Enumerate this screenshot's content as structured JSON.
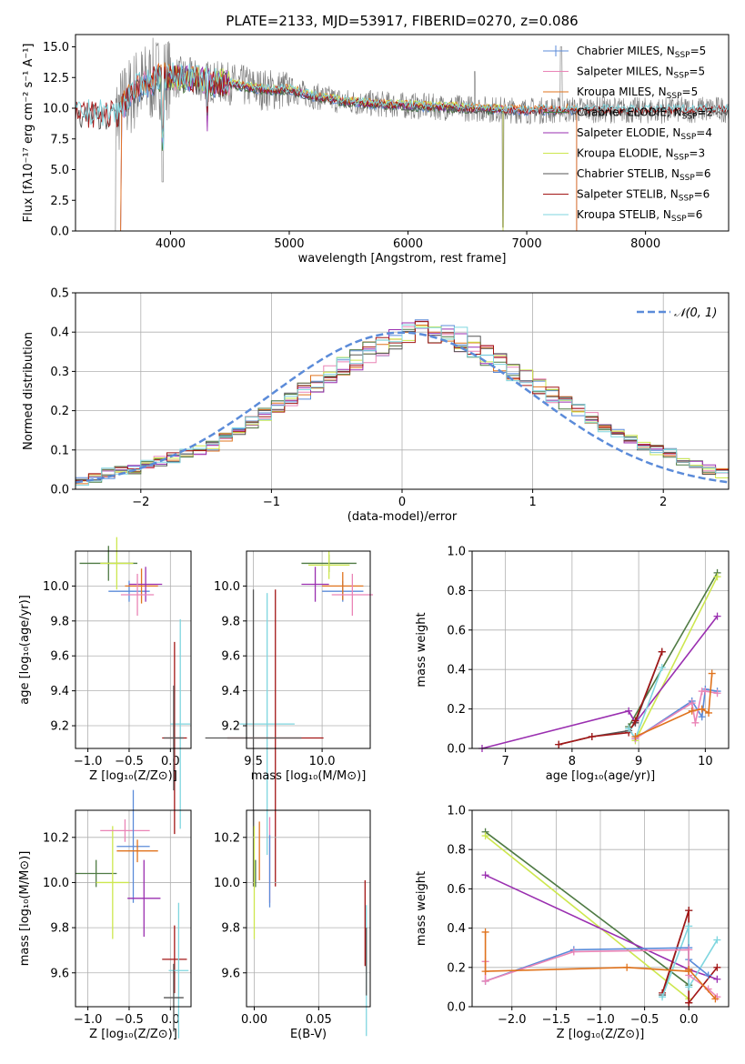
{
  "figure_title": "PLATE=2133, MJD=53917, FIBERID=0270, z=0.086",
  "colors": {
    "Chabrier MILES": "#5b8bd9",
    "Salpeter MILES": "#ea84b6",
    "Kroupa MILES": "#e0731d",
    "Chabrier ELODIE": "#4e7a43",
    "Salpeter ELODIE": "#9a2fb0",
    "Kroupa ELODIE": "#cde74e",
    "Chabrier STELIB": "#555555",
    "Salpeter STELIB": "#a31616",
    "Kroupa STELIB": "#7fd6df"
  },
  "chart_data": [
    {
      "id": "spectrum",
      "type": "line",
      "title": "PLATE=2133, MJD=53917, FIBERID=0270, z=0.086",
      "xlabel": "wavelength [Angstrom, rest frame]",
      "ylabel": "Flux [fλ10⁻¹⁷ erg cm⁻² s⁻¹ A⁻¹]",
      "xlim": [
        3200,
        8700
      ],
      "ylim": [
        0,
        16
      ],
      "xticks": [
        "4000",
        "5000",
        "6000",
        "7000",
        "8000"
      ],
      "yticks": [
        "0.0",
        "2.5",
        "5.0",
        "7.5",
        "10.0",
        "12.5",
        "15.0"
      ],
      "legend": [
        {
          "name": "Chabrier MILES",
          "nssp": "5"
        },
        {
          "name": "Salpeter MILES",
          "nssp": "5"
        },
        {
          "name": "Kroupa MILES",
          "nssp": "5"
        },
        {
          "name": "Chabrier ELODIE",
          "nssp": "2"
        },
        {
          "name": "Salpeter ELODIE",
          "nssp": "4"
        },
        {
          "name": "Kroupa ELODIE",
          "nssp": "3"
        },
        {
          "name": "Chabrier STELIB",
          "nssp": "6"
        },
        {
          "name": "Salpeter STELIB",
          "nssp": "6"
        },
        {
          "name": "Kroupa STELIB",
          "nssp": "6"
        }
      ],
      "legend_placement": "upper-right",
      "grid": false,
      "data_continuum_x": [
        3550,
        3700,
        3900,
        4100,
        4300,
        4500,
        4800,
        5000,
        5200,
        5500,
        6000,
        6500,
        7000,
        7500,
        8000,
        8500
      ],
      "data_continuum_y": [
        9.5,
        11.5,
        12.5,
        12.5,
        12.2,
        12.0,
        11.5,
        11.5,
        11.0,
        10.5,
        10.2,
        10.0,
        9.8,
        9.9,
        9.8,
        9.9
      ],
      "model_ranges": {
        "MILES": [
          3550,
          7420
        ],
        "ELODIE": [
          3900,
          6800
        ],
        "STELIB": [
          3200,
          8700
        ]
      }
    },
    {
      "id": "residual-histogram",
      "type": "histogram",
      "xlabel": "(data-model)/error",
      "ylabel": "Normed distribution",
      "xlim": [
        -2.5,
        2.5
      ],
      "ylim": [
        0,
        0.5
      ],
      "xticks": [
        "−2",
        "−1",
        "0",
        "1",
        "2"
      ],
      "yticks": [
        "0.0",
        "0.1",
        "0.2",
        "0.3",
        "0.4",
        "0.5"
      ],
      "grid": true,
      "bin_edges_start": -2.5,
      "bin_width": 0.1,
      "reference_curve": {
        "name": "𝒩(0, 1)",
        "mean": 0,
        "sigma": 1,
        "style": "dashed"
      },
      "legend_placement": "upper-right",
      "base_values": [
        0.02,
        0.03,
        0.04,
        0.05,
        0.05,
        0.06,
        0.07,
        0.08,
        0.09,
        0.1,
        0.11,
        0.13,
        0.15,
        0.17,
        0.19,
        0.21,
        0.23,
        0.25,
        0.27,
        0.29,
        0.31,
        0.33,
        0.35,
        0.37,
        0.38,
        0.39,
        0.4,
        0.4,
        0.39,
        0.38,
        0.36,
        0.34,
        0.32,
        0.3,
        0.28,
        0.26,
        0.24,
        0.22,
        0.2,
        0.18,
        0.16,
        0.14,
        0.13,
        0.11,
        0.1,
        0.09,
        0.07,
        0.06,
        0.05,
        0.04,
        0.03,
        0.03
      ]
    },
    {
      "id": "age-vs-Z",
      "type": "errorbar",
      "xlabel": "Z [log₁₀(Z/Z⊙)]",
      "ylabel": "age  [log₁₀(age/yr)]",
      "xlim": [
        -1.15,
        0.25
      ],
      "ylim": [
        9.07,
        10.2
      ],
      "xticks": [
        -1.0,
        -0.5,
        0.0
      ],
      "xtick_labels": [
        "−1.0",
        "−0.5",
        "0.0"
      ],
      "yticks": [
        9.2,
        9.4,
        9.6,
        9.8,
        10.0
      ],
      "ytick_labels": [
        "9.2",
        "9.4",
        "9.6",
        "9.8",
        "10.0"
      ],
      "grid": true,
      "points": [
        {
          "series": "Chabrier ELODIE",
          "x": -0.75,
          "xerr": 0.35,
          "y": 10.13,
          "yerr": 0.1
        },
        {
          "series": "Kroupa ELODIE",
          "x": -0.65,
          "xerr": 0.2,
          "y": 10.13,
          "yerr": 0.15
        },
        {
          "series": "Chabrier MILES",
          "x": -0.5,
          "xerr": 0.25,
          "y": 9.97,
          "yerr": 0.06
        },
        {
          "series": "Kroupa MILES",
          "x": -0.35,
          "xerr": 0.2,
          "y": 10.0,
          "yerr": 0.1
        },
        {
          "series": "Salpeter ELODIE",
          "x": -0.3,
          "xerr": 0.2,
          "y": 10.01,
          "yerr": 0.1
        },
        {
          "series": "Salpeter MILES",
          "x": -0.4,
          "xerr": 0.2,
          "y": 9.95,
          "yerr": 0.12
        },
        {
          "series": "Kroupa STELIB",
          "x": 0.12,
          "xerr": 0.12,
          "y": 9.21,
          "yerr": 0.6
        },
        {
          "series": "Salpeter STELIB",
          "x": 0.05,
          "xerr": 0.15,
          "y": 9.13,
          "yerr": 0.55
        },
        {
          "series": "Chabrier STELIB",
          "x": 0.04,
          "xerr": 0.12,
          "y": 9.13,
          "yerr": 0.3
        }
      ]
    },
    {
      "id": "age-vs-mass",
      "type": "errorbar",
      "xlabel": "mass [log₁₀(M/M⊙)]",
      "ylabel": "",
      "xlim": [
        9.45,
        10.35
      ],
      "ylim": [
        9.07,
        10.2
      ],
      "xticks": [
        9.5,
        10.0
      ],
      "xtick_labels": [
        "9.5",
        "10.0"
      ],
      "yticks": [
        9.2,
        9.4,
        9.6,
        9.8,
        10.0
      ],
      "ytick_labels": [
        "9.2",
        "9.4",
        "9.6",
        "9.8",
        "10.0"
      ],
      "grid": true,
      "points": [
        {
          "series": "Chabrier ELODIE",
          "x": 10.05,
          "xerr": 0.2,
          "y": 10.13,
          "yerr": 0.05
        },
        {
          "series": "Kroupa ELODIE",
          "x": 10.05,
          "xerr": 0.15,
          "y": 10.12,
          "yerr": 0.08
        },
        {
          "series": "Chabrier MILES",
          "x": 10.15,
          "xerr": 0.15,
          "y": 9.97,
          "yerr": 0.06
        },
        {
          "series": "Kroupa MILES",
          "x": 10.15,
          "xerr": 0.15,
          "y": 10.0,
          "yerr": 0.08
        },
        {
          "series": "Salpeter ELODIE",
          "x": 9.95,
          "xerr": 0.1,
          "y": 10.01,
          "yerr": 0.1
        },
        {
          "series": "Salpeter MILES",
          "x": 10.22,
          "xerr": 0.15,
          "y": 9.95,
          "yerr": 0.12
        },
        {
          "series": "Kroupa STELIB",
          "x": 9.6,
          "xerr": 0.2,
          "y": 9.21,
          "yerr": 0.75
        },
        {
          "series": "Salpeter STELIB",
          "x": 9.66,
          "xerr": 0.35,
          "y": 9.13,
          "yerr": 0.85
        },
        {
          "series": "Chabrier STELIB",
          "x": 9.5,
          "xerr": 0.35,
          "y": 9.13,
          "yerr": 0.85
        }
      ]
    },
    {
      "id": "mass-weight-vs-age",
      "type": "line",
      "xlabel": "age  [log₁₀(age/yr)]",
      "ylabel": "mass weight",
      "xlim": [
        6.5,
        10.35
      ],
      "ylim": [
        0,
        1.0
      ],
      "xticks": [
        7,
        8,
        9,
        10
      ],
      "xtick_labels": [
        "7",
        "8",
        "9",
        "10"
      ],
      "yticks": [
        0,
        0.2,
        0.4,
        0.6,
        0.8,
        1.0
      ],
      "ytick_labels": [
        "0.0",
        "0.2",
        "0.4",
        "0.6",
        "0.8",
        "1.0"
      ],
      "grid": true,
      "series": [
        {
          "series": "Chabrier ELODIE",
          "x": [
            8.85,
            10.18
          ],
          "y": [
            0.11,
            0.89
          ]
        },
        {
          "series": "Kroupa ELODIE",
          "x": [
            8.95,
            10.18
          ],
          "y": [
            0.04,
            0.87
          ]
        },
        {
          "series": "Salpeter ELODIE",
          "x": [
            6.65,
            8.85,
            8.95,
            10.18
          ],
          "y": [
            0.0,
            0.19,
            0.13,
            0.67
          ]
        },
        {
          "series": "Chabrier STELIB",
          "x": [
            7.8,
            8.3,
            8.85,
            8.95,
            9.35
          ],
          "y": [
            0.02,
            0.06,
            0.09,
            0.13,
            0.49
          ]
        },
        {
          "series": "Salpeter STELIB",
          "x": [
            7.8,
            8.3,
            8.85,
            8.95,
            9.35
          ],
          "y": [
            0.02,
            0.06,
            0.08,
            0.14,
            0.49
          ]
        },
        {
          "series": "Kroupa STELIB",
          "x": [
            8.85,
            8.95,
            9.35
          ],
          "y": [
            0.1,
            0.05,
            0.41
          ]
        },
        {
          "series": "Chabrier MILES",
          "x": [
            8.95,
            9.8,
            9.95,
            10.0,
            10.18
          ],
          "y": [
            0.05,
            0.24,
            0.16,
            0.3,
            0.29
          ]
        },
        {
          "series": "Salpeter MILES",
          "x": [
            8.95,
            9.8,
            9.85,
            9.95,
            10.0,
            10.18
          ],
          "y": [
            0.05,
            0.23,
            0.13,
            0.29,
            0.29,
            0.28
          ]
        },
        {
          "series": "Kroupa MILES",
          "x": [
            8.95,
            9.8,
            9.95,
            10.05,
            10.1
          ],
          "y": [
            0.06,
            0.19,
            0.2,
            0.18,
            0.38
          ]
        }
      ]
    },
    {
      "id": "mass-vs-Z",
      "type": "errorbar",
      "xlabel": "Z [log₁₀(Z/Z⊙)]",
      "ylabel": "mass [log₁₀(M/M⊙)]",
      "xlim": [
        -1.15,
        0.25
      ],
      "ylim": [
        9.45,
        10.32
      ],
      "xticks": [
        -1.0,
        -0.5,
        0.0
      ],
      "xtick_labels": [
        "−1.0",
        "−0.5",
        "0.0"
      ],
      "yticks": [
        9.6,
        9.8,
        10.0,
        10.2
      ],
      "ytick_labels": [
        "9.6",
        "9.8",
        "10.0",
        "10.2"
      ],
      "grid": true,
      "points": [
        {
          "series": "Chabrier ELODIE",
          "x": -0.9,
          "xerr": 0.25,
          "y": 10.04,
          "yerr": 0.06
        },
        {
          "series": "Kroupa ELODIE",
          "x": -0.7,
          "xerr": 0.2,
          "y": 10.0,
          "yerr": 0.25
        },
        {
          "series": "Salpeter MILES",
          "x": -0.55,
          "xerr": 0.3,
          "y": 10.23,
          "yerr": 0.05
        },
        {
          "series": "Chabrier MILES",
          "x": -0.45,
          "xerr": 0.2,
          "y": 10.16,
          "yerr": 0.25
        },
        {
          "series": "Kroupa MILES",
          "x": -0.4,
          "xerr": 0.25,
          "y": 10.14,
          "yerr": 0.05
        },
        {
          "series": "Salpeter ELODIE",
          "x": -0.32,
          "xerr": 0.2,
          "y": 9.93,
          "yerr": 0.17
        },
        {
          "series": "Salpeter STELIB",
          "x": 0.05,
          "xerr": 0.15,
          "y": 9.66,
          "yerr": 0.15
        },
        {
          "series": "Kroupa STELIB",
          "x": 0.1,
          "xerr": 0.12,
          "y": 9.61,
          "yerr": 0.3
        },
        {
          "series": "Chabrier STELIB",
          "x": 0.04,
          "xerr": 0.12,
          "y": 9.49,
          "yerr": 0.15
        }
      ]
    },
    {
      "id": "mass-vs-EBV",
      "type": "errorbar",
      "xlabel": "E(B-V)",
      "ylabel": "",
      "xlim": [
        -0.006,
        0.09
      ],
      "ylim": [
        9.45,
        10.32
      ],
      "xticks": [
        0.0,
        0.05
      ],
      "xtick_labels": [
        "0.00",
        "0.05"
      ],
      "yticks": [
        9.6,
        9.8,
        10.0,
        10.2
      ],
      "ytick_labels": [
        "9.6",
        "9.8",
        "10.0",
        "10.2"
      ],
      "grid": true,
      "points": [
        {
          "series": "Kroupa ELODIE",
          "x": 0.0,
          "y": 10.0,
          "yerr": 0.25
        },
        {
          "series": "Chabrier ELODIE",
          "x": 0.001,
          "y": 10.04,
          "yerr": 0.06
        },
        {
          "series": "Kroupa MILES",
          "x": 0.004,
          "y": 10.14,
          "yerr": 0.13
        },
        {
          "series": "Salpeter MILES",
          "x": 0.012,
          "y": 10.1,
          "yerr": 0.19
        },
        {
          "series": "Chabrier MILES",
          "x": 0.012,
          "y": 10.05,
          "yerr": 0.16
        },
        {
          "series": "Salpeter STELIB",
          "x": 0.086,
          "y": 9.82,
          "yerr": 0.19
        },
        {
          "series": "Kroupa STELIB",
          "x": 0.087,
          "y": 9.61,
          "yerr": 0.29
        },
        {
          "series": "Chabrier STELIB",
          "x": 0.087,
          "y": 9.65,
          "yerr": 0.15
        }
      ]
    },
    {
      "id": "mass-weight-vs-Z",
      "type": "line",
      "xlabel": "Z [log₁₀(Z/Z⊙)]",
      "ylabel": "mass weight",
      "xlim": [
        -2.45,
        0.45
      ],
      "ylim": [
        0,
        1.0
      ],
      "xticks": [
        -2.0,
        -1.5,
        -1.0,
        -0.5,
        0.0
      ],
      "xtick_labels": [
        "−2.0",
        "−1.5",
        "−1.0",
        "−0.5",
        "0.0"
      ],
      "yticks": [
        0,
        0.2,
        0.4,
        0.6,
        0.8,
        1.0
      ],
      "ytick_labels": [
        "0.0",
        "0.2",
        "0.4",
        "0.6",
        "0.8",
        "1.0"
      ],
      "grid": true,
      "series": [
        {
          "series": "Chabrier ELODIE",
          "x": [
            -2.3,
            0.0
          ],
          "y": [
            0.89,
            0.11
          ]
        },
        {
          "series": "Kroupa ELODIE",
          "x": [
            -2.3,
            0.0
          ],
          "y": [
            0.87,
            0.04
          ]
        },
        {
          "series": "Salpeter ELODIE",
          "x": [
            -2.3,
            0.0,
            0.32
          ],
          "y": [
            0.67,
            0.19,
            0.14
          ]
        },
        {
          "series": "Chabrier STELIB",
          "x": [
            -0.3,
            0.0,
            0.0
          ],
          "y": [
            0.06,
            0.49,
            0.02
          ]
        },
        {
          "series": "Salpeter STELIB",
          "x": [
            -0.3,
            0.0,
            0.0,
            0.32
          ],
          "y": [
            0.07,
            0.49,
            0.02,
            0.2
          ]
        },
        {
          "series": "Kroupa STELIB",
          "x": [
            -0.3,
            0.0,
            0.0,
            0.32
          ],
          "y": [
            0.05,
            0.41,
            0.1,
            0.34
          ]
        },
        {
          "series": "Chabrier MILES",
          "x": [
            -2.3,
            -1.3,
            0.0,
            0.0,
            0.22
          ],
          "y": [
            0.13,
            0.29,
            0.3,
            0.24,
            0.16
          ]
        },
        {
          "series": "Salpeter MILES",
          "x": [
            -2.3,
            -2.3,
            -1.3,
            0.0,
            0.0,
            0.22,
            0.32
          ],
          "y": [
            0.23,
            0.13,
            0.28,
            0.29,
            0.16,
            0.09,
            0.05
          ]
        },
        {
          "series": "Kroupa MILES",
          "x": [
            -2.3,
            -2.3,
            -0.7,
            0.0,
            0.0,
            0.3
          ],
          "y": [
            0.38,
            0.18,
            0.2,
            0.18,
            0.19,
            0.04
          ]
        }
      ]
    }
  ]
}
